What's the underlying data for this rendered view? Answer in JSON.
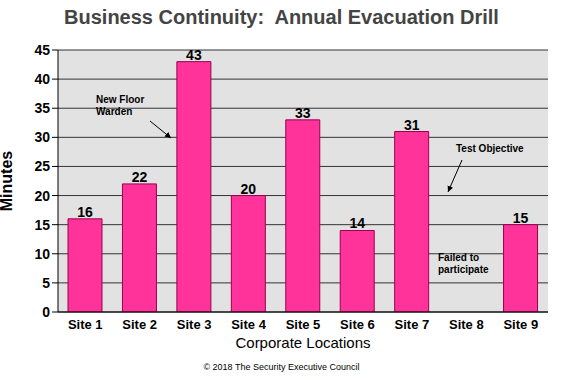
{
  "chart_data": {
    "type": "bar",
    "title": "Business Continuity:  Annual Evacuation Drill",
    "x_label": "Corporate Locations",
    "y_label": "Minutes",
    "categories": [
      "Site 1",
      "Site 2",
      "Site 3",
      "Site 4",
      "Site 5",
      "Site 6",
      "Site 7",
      "Site 8",
      "Site 9"
    ],
    "values": [
      16,
      22,
      43,
      20,
      33,
      14,
      31,
      0,
      15
    ],
    "color": "#ff3399",
    "ylim": [
      0,
      45
    ],
    "yticks": [
      0,
      5,
      10,
      15,
      20,
      25,
      30,
      35,
      40,
      45
    ],
    "grid": true,
    "data_labels": true,
    "annotations": [
      "New Floor Warden",
      "Test Objective",
      "Failed to participate"
    ],
    "source": "© 2018 The Security Executive Council"
  }
}
